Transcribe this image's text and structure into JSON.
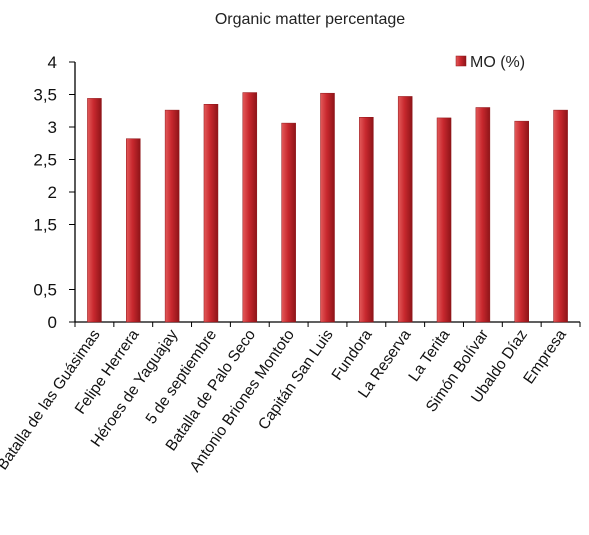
{
  "chart_data": {
    "type": "bar",
    "title": "Organic matter percentage",
    "xlabel": "",
    "ylabel": "",
    "ylim": [
      0,
      4
    ],
    "yticks": [
      {
        "value": 0,
        "label": "0"
      },
      {
        "value": 0.5,
        "label": "0,5"
      },
      {
        "value": 1.5,
        "label": "1,5"
      },
      {
        "value": 2,
        "label": "2"
      },
      {
        "value": 2.5,
        "label": "2,5"
      },
      {
        "value": 3,
        "label": "3"
      },
      {
        "value": 3.5,
        "label": "3,5"
      },
      {
        "value": 4,
        "label": "4"
      }
    ],
    "grid": false,
    "legend_position": "top-right",
    "categories": [
      "Batalla de las Guásimas",
      "Felipe Herrera",
      "Héroes de Yaguajay",
      "5 de septiembre",
      "Batalla de Palo Seco",
      "Antonio Briones Montoto",
      "Capitán San Luis",
      "Fundora",
      "La Reserva",
      "La Terita",
      "Simón Bolívar",
      "Ubaldo Díaz",
      "Empresa"
    ],
    "series": [
      {
        "name": "MO (%)",
        "color": "#c0272d",
        "values": [
          3.44,
          2.82,
          3.26,
          3.35,
          3.53,
          3.06,
          3.52,
          3.15,
          3.47,
          3.14,
          3.3,
          3.09,
          3.26
        ]
      }
    ]
  }
}
